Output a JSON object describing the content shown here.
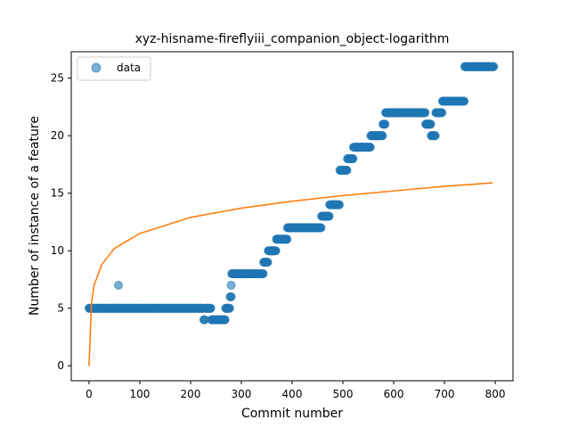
{
  "chart_data": {
    "type": "scatter",
    "title": "xyz-hisname-fireflyiii_companion_object-logarithm",
    "xlabel": "Commit number",
    "ylabel": "Number of instance of a feature",
    "xlim": [
      -35,
      835
    ],
    "ylim": [
      -1.3,
      27.3
    ],
    "xticks": [
      0,
      100,
      200,
      300,
      400,
      500,
      600,
      700,
      800
    ],
    "yticks": [
      0,
      5,
      10,
      15,
      20,
      25
    ],
    "grid": false,
    "legend": {
      "position": "top-left",
      "entries": [
        "data"
      ]
    },
    "colors": {
      "data": "#1f77b4",
      "fit": "#ff7f0e"
    },
    "series": [
      {
        "name": "data",
        "kind": "scatter",
        "segments": [
          {
            "x_start": 0,
            "x_end": 225,
            "y": 5
          },
          {
            "x_start": 226,
            "x_end": 228,
            "y": 4
          },
          {
            "x_start": 229,
            "x_end": 240,
            "y": 5
          },
          {
            "x_start": 241,
            "x_end": 268,
            "y": 4
          },
          {
            "x_start": 269,
            "x_end": 277,
            "y": 5
          },
          {
            "x_start": 278,
            "x_end": 280,
            "y": 6
          },
          {
            "x_start": 281,
            "x_end": 343,
            "y": 8
          },
          {
            "x_start": 344,
            "x_end": 352,
            "y": 9
          },
          {
            "x_start": 353,
            "x_end": 368,
            "y": 10
          },
          {
            "x_start": 369,
            "x_end": 390,
            "y": 11
          },
          {
            "x_start": 391,
            "x_end": 457,
            "y": 12
          },
          {
            "x_start": 458,
            "x_end": 473,
            "y": 13
          },
          {
            "x_start": 474,
            "x_end": 493,
            "y": 14
          },
          {
            "x_start": 494,
            "x_end": 508,
            "y": 17
          },
          {
            "x_start": 509,
            "x_end": 520,
            "y": 18
          },
          {
            "x_start": 521,
            "x_end": 554,
            "y": 19
          },
          {
            "x_start": 555,
            "x_end": 578,
            "y": 20
          },
          {
            "x_start": 579,
            "x_end": 583,
            "y": 21
          },
          {
            "x_start": 584,
            "x_end": 662,
            "y": 22
          },
          {
            "x_start": 663,
            "x_end": 673,
            "y": 21
          },
          {
            "x_start": 674,
            "x_end": 682,
            "y": 20
          },
          {
            "x_start": 683,
            "x_end": 695,
            "y": 22
          },
          {
            "x_start": 696,
            "x_end": 739,
            "y": 23
          },
          {
            "x_start": 740,
            "x_end": 797,
            "y": 26
          }
        ],
        "outliers": [
          {
            "x": 58,
            "y": 7
          },
          {
            "x": 280,
            "y": 7
          }
        ]
      },
      {
        "name": "",
        "kind": "line",
        "function": "logarithmic",
        "x_range": [
          0,
          795
        ],
        "points": [
          [
            0,
            0
          ],
          [
            5,
            5.5
          ],
          [
            10,
            7.0
          ],
          [
            25,
            8.8
          ],
          [
            50,
            10.2
          ],
          [
            100,
            11.5
          ],
          [
            200,
            12.9
          ],
          [
            300,
            13.7
          ],
          [
            400,
            14.3
          ],
          [
            500,
            14.8
          ],
          [
            600,
            15.2
          ],
          [
            700,
            15.6
          ],
          [
            795,
            15.9
          ]
        ]
      }
    ]
  }
}
